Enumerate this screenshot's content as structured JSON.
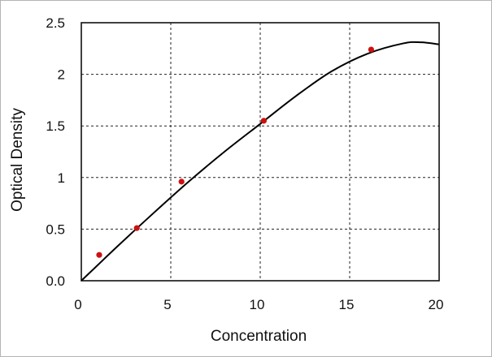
{
  "chart_data": {
    "type": "scatter",
    "xlabel": "Concentration",
    "ylabel": "Optical Density",
    "xlim": [
      0,
      20
    ],
    "ylim": [
      0,
      2.5
    ],
    "x_ticks": [
      "0",
      "5",
      "10",
      "15",
      "20"
    ],
    "y_ticks": [
      "0.0",
      "0.5",
      "1",
      "1.5",
      "2",
      "2.5"
    ],
    "grid": true,
    "grid_style": "dashed",
    "series": [
      {
        "kind": "points",
        "color": "#cc1111",
        "x": [
          1.0,
          3.1,
          5.6,
          10.2,
          16.2
        ],
        "y": [
          0.25,
          0.51,
          0.96,
          1.55,
          2.24
        ]
      },
      {
        "kind": "fit-curve",
        "color": "#000000",
        "x": [
          0,
          2,
          4,
          6,
          8,
          10,
          12,
          14,
          16,
          18,
          19,
          20
        ],
        "y": [
          0.0,
          0.33,
          0.65,
          0.96,
          1.25,
          1.52,
          1.79,
          2.03,
          2.2,
          2.3,
          2.31,
          2.29
        ]
      }
    ]
  }
}
